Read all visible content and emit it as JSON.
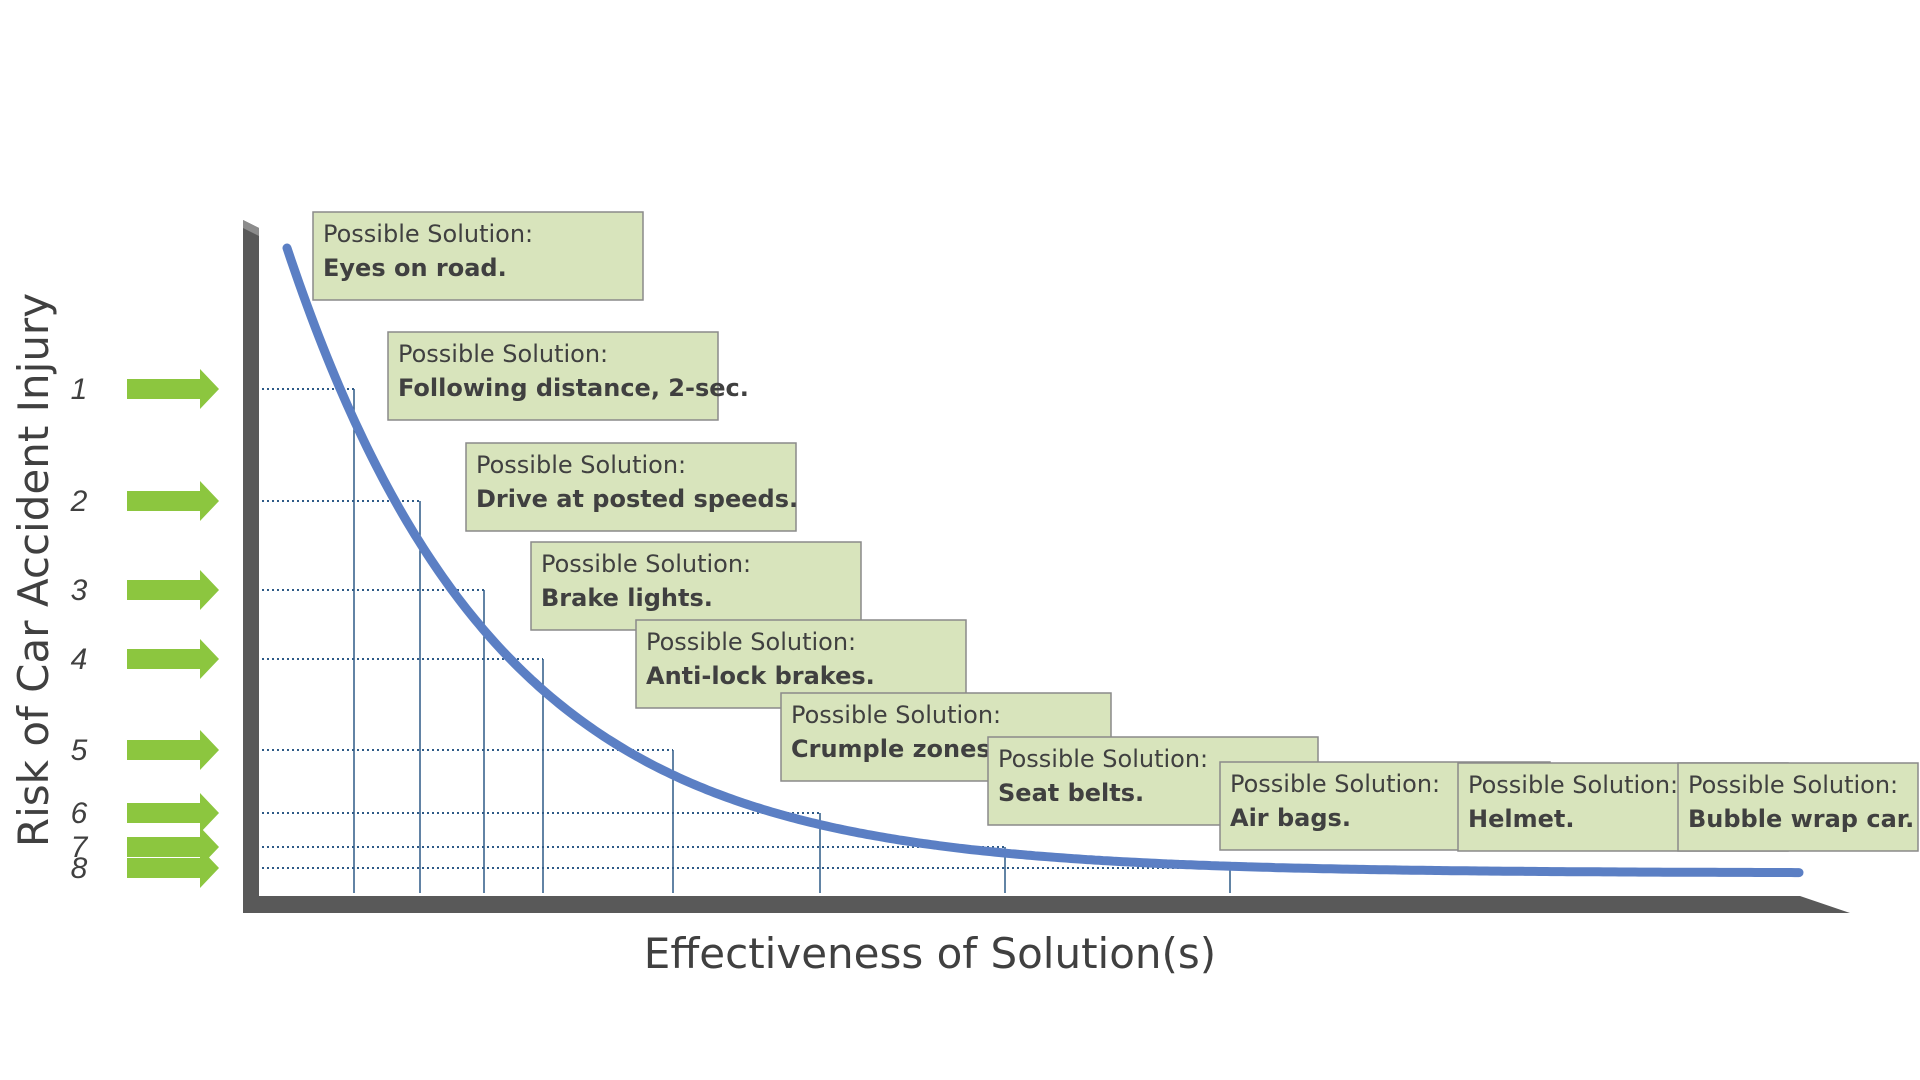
{
  "x_axis_title": "Effectiveness of Solution(s)",
  "y_axis_title": "Risk of Car Accident Injury",
  "levels": [
    "1",
    "2",
    "3",
    "4",
    "5",
    "6",
    "7",
    "8"
  ],
  "solution_header": "Possible Solution:",
  "solutions": [
    "Eyes on road.",
    "Following distance, 2-sec.",
    "Drive at posted speeds.",
    "Brake lights.",
    "Anti-lock brakes.",
    "Crumple zones.",
    "Seat belts.",
    "Air bags.",
    "Helmet.",
    "Bubble wrap car."
  ],
  "colors": {
    "curve": "#5b7fc4",
    "arrow": "#8cc63f",
    "box_fill": "#d8e4bc",
    "axis": "#595959",
    "guide": "#2e5a87"
  }
}
